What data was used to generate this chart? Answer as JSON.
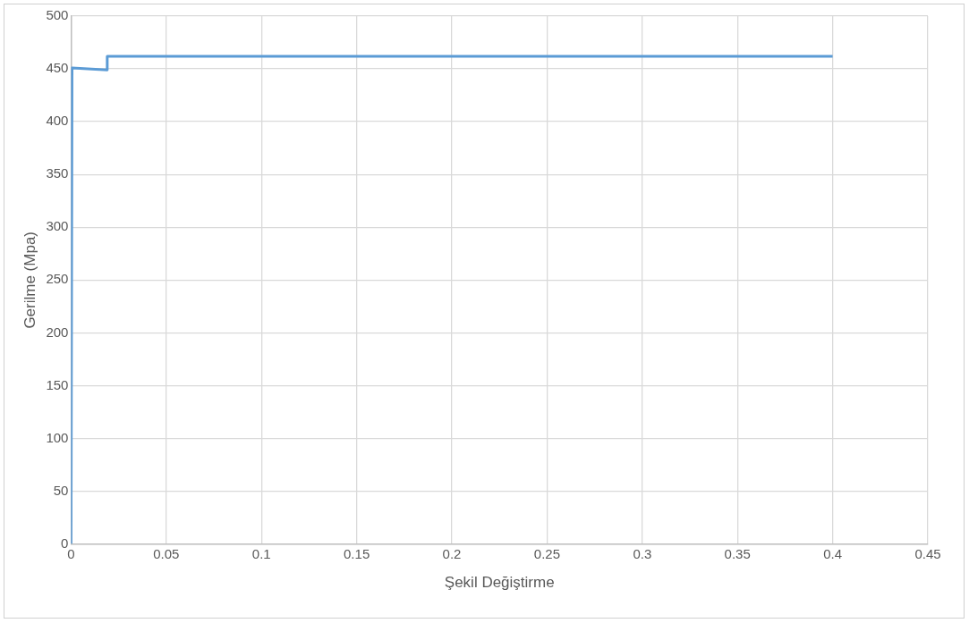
{
  "chart_data": {
    "type": "line",
    "xlabel": "Şekil Değiştirme",
    "ylabel": "Gerilme (Mpa)",
    "x": [
      0,
      0.0005,
      0.019,
      0.019,
      0.4
    ],
    "series": [
      {
        "color": "#5b9bd5",
        "values": [
          0,
          451,
          449,
          462,
          462
        ]
      }
    ],
    "xlim": [
      0,
      0.45
    ],
    "xticks": [
      0,
      0.05,
      0.1,
      0.15,
      0.2,
      0.25,
      0.3,
      0.35,
      0.4,
      0.45
    ],
    "ylim": [
      0,
      500
    ],
    "yticks": [
      0,
      50,
      100,
      150,
      200,
      250,
      300,
      350,
      400,
      450,
      500
    ],
    "grid": true,
    "legend": false,
    "marker": "none",
    "line_style": "solid"
  }
}
